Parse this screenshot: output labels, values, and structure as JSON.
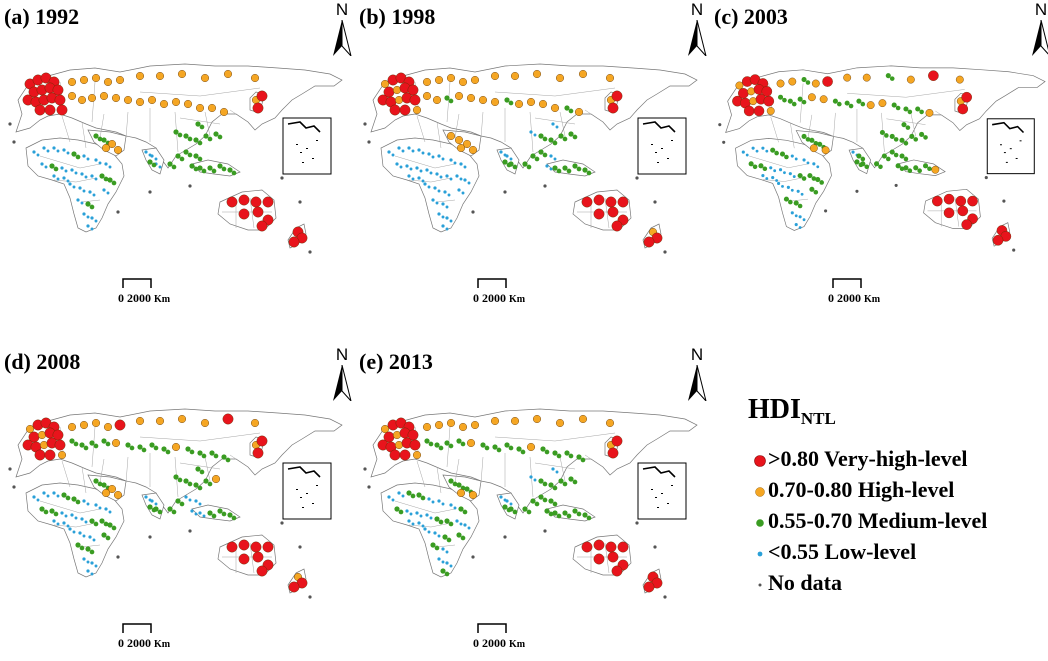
{
  "panels": [
    {
      "title": "(a) 1992",
      "north": "N",
      "scale_zero": "0",
      "scale_value": "2000",
      "scale_unit": "Km"
    },
    {
      "title": "(b) 1998",
      "north": "N",
      "scale_zero": "0",
      "scale_value": "2000",
      "scale_unit": "Km"
    },
    {
      "title": "(c) 2003",
      "north": "N",
      "scale_zero": "0",
      "scale_value": "2000",
      "scale_unit": "Km"
    },
    {
      "title": "(d) 2008",
      "north": "N",
      "scale_zero": "0",
      "scale_value": "2000",
      "scale_unit": "Km"
    },
    {
      "title": "(e) 2013",
      "north": "N",
      "scale_zero": "0",
      "scale_value": "2000",
      "scale_unit": "Km"
    }
  ],
  "legend": {
    "title_main": "HDI",
    "title_sub": "NTL",
    "items": [
      {
        "label": ">0.80 Very-high-level",
        "color": "#e8141c"
      },
      {
        "label": "0.70-0.80 High-level",
        "color": "#f5a623"
      },
      {
        "label": "0.55-0.70 Medium-level",
        "color": "#3a9c22"
      },
      {
        "label": "<0.55 Low-level",
        "color": "#2aa0d8"
      },
      {
        "label": "No data",
        "color": "#555555"
      }
    ]
  }
}
